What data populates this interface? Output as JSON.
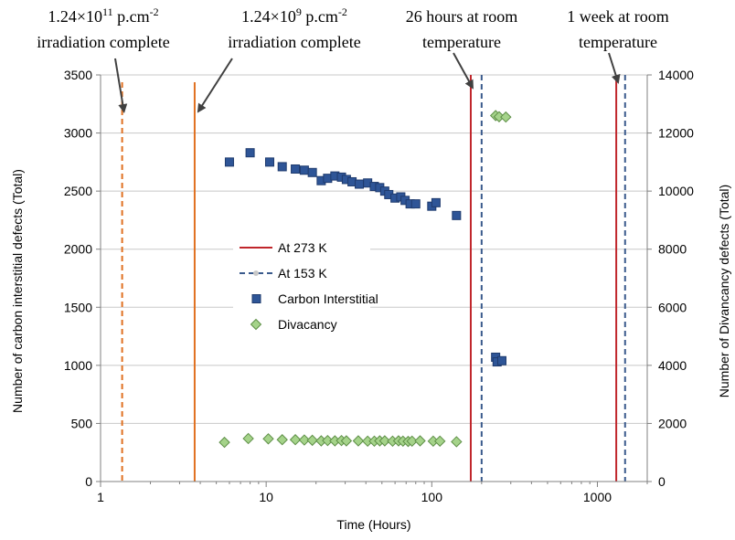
{
  "chart_data": {
    "type": "scatter",
    "x_scale": "log",
    "xlabel": "Time (Hours)",
    "ylabel_left": "Number of carbon interstitial defects (Total)",
    "ylabel_right": "Number of Divancancy defects (Total)",
    "xlim": [
      1,
      2000
    ],
    "ylim_left": [
      0,
      3500
    ],
    "ylim_right": [
      0,
      14000
    ],
    "x_ticks": [
      1,
      10,
      100,
      1000
    ],
    "x_tick_labels": [
      "1",
      "10",
      "100",
      "1000"
    ],
    "y_ticks_left": [
      0,
      500,
      1000,
      1500,
      2000,
      2500,
      3000,
      3500
    ],
    "y_tick_labels_left": [
      "0",
      "500",
      "1000",
      "1500",
      "2000",
      "2500",
      "3000",
      "3500"
    ],
    "y_ticks_right": [
      0,
      2000,
      4000,
      6000,
      8000,
      10000,
      12000,
      14000
    ],
    "y_tick_labels_right": [
      "0",
      "2000",
      "4000",
      "6000",
      "8000",
      "10000",
      "12000",
      "14000"
    ],
    "grid": "horizontal",
    "legend_position": "center-left",
    "colors": {
      "at_273K": "#c0262b",
      "at_153K": "#3a5a8c",
      "irradiation": "#e07020",
      "carbon": "#2e5597",
      "carbon_edge": "#1f3b6e",
      "divacancy": "#a5d38a",
      "divacancy_edge": "#5e8f47",
      "grid": "#c8c8c8",
      "arrow": "#404040"
    },
    "series": [
      {
        "name": "At 273 K",
        "kind": "vline",
        "style": "solid",
        "color": "#c0262b",
        "x": [
          3.7,
          172,
          1300
        ]
      },
      {
        "name": "At 153 K",
        "kind": "vline",
        "style": "dashed",
        "color": "#3a5a8c",
        "x": [
          200,
          1470
        ]
      },
      {
        "name": "Carbon Interstitial",
        "kind": "markers",
        "marker": "square",
        "axis": "left",
        "color": "#2e5597",
        "points": [
          [
            6,
            2750
          ],
          [
            8,
            2830
          ],
          [
            10.5,
            2750
          ],
          [
            12.5,
            2710
          ],
          [
            15,
            2690
          ],
          [
            17,
            2680
          ],
          [
            19,
            2660
          ],
          [
            21.5,
            2590
          ],
          [
            23.5,
            2610
          ],
          [
            26,
            2630
          ],
          [
            28.5,
            2620
          ],
          [
            30.5,
            2600
          ],
          [
            33,
            2580
          ],
          [
            36.5,
            2560
          ],
          [
            41,
            2570
          ],
          [
            45,
            2540
          ],
          [
            48.5,
            2530
          ],
          [
            52,
            2500
          ],
          [
            55,
            2470
          ],
          [
            60,
            2440
          ],
          [
            65,
            2450
          ],
          [
            69,
            2420
          ],
          [
            74,
            2390
          ],
          [
            80,
            2390
          ],
          [
            100,
            2370
          ],
          [
            106,
            2400
          ],
          [
            141,
            2290
          ],
          [
            243,
            1070
          ],
          [
            248,
            1030
          ],
          [
            265,
            1040
          ]
        ]
      },
      {
        "name": "Divacancy",
        "kind": "markers",
        "marker": "diamond",
        "axis": "right",
        "color": "#a5d38a",
        "points": [
          [
            5.6,
            1350
          ],
          [
            7.8,
            1480
          ],
          [
            10.3,
            1470
          ],
          [
            12.5,
            1440
          ],
          [
            15,
            1440
          ],
          [
            17,
            1430
          ],
          [
            19,
            1420
          ],
          [
            21.5,
            1400
          ],
          [
            23.5,
            1410
          ],
          [
            26,
            1400
          ],
          [
            28.5,
            1410
          ],
          [
            30.5,
            1400
          ],
          [
            36,
            1400
          ],
          [
            41,
            1390
          ],
          [
            45,
            1390
          ],
          [
            48.5,
            1400
          ],
          [
            52,
            1400
          ],
          [
            58,
            1390
          ],
          [
            63,
            1400
          ],
          [
            67,
            1390
          ],
          [
            72,
            1380
          ],
          [
            76,
            1390
          ],
          [
            85,
            1400
          ],
          [
            102,
            1390
          ],
          [
            112,
            1390
          ],
          [
            141,
            1370
          ],
          [
            243,
            12600
          ],
          [
            255,
            12560
          ],
          [
            280,
            12550
          ]
        ]
      }
    ],
    "irradiation_lines": [
      {
        "x": 1.35,
        "style": "dashed",
        "color": "#e07020"
      },
      {
        "x": 3.7,
        "style": "solid",
        "color": "#e07020"
      }
    ],
    "annotations": [
      {
        "id": "irr1",
        "line1_main": "1.24×10",
        "line1_sup": "11",
        "line1_rest": " p.cm",
        "line1_sup2": "-2",
        "line2": "irradiation complete"
      },
      {
        "id": "irr2",
        "line1_main": "1.24×10",
        "line1_sup": "9",
        "line1_rest": " p.cm",
        "line1_sup2": "-2",
        "line2": "irradiation complete"
      },
      {
        "id": "h26",
        "line1_main": "26 hours at room",
        "line2": "temperature"
      },
      {
        "id": "w1",
        "line1_main": "1 week at room",
        "line2": "temperature"
      }
    ]
  }
}
